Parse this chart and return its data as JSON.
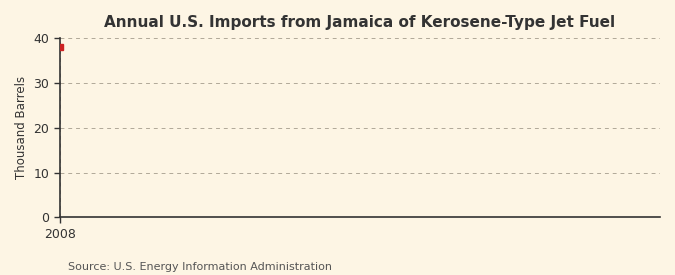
{
  "title": "Annual U.S. Imports from Jamaica of Kerosene-Type Jet Fuel",
  "ylabel": "Thousand Barrels",
  "source": "Source: U.S. Energy Information Administration",
  "x_data": [
    2008
  ],
  "y_data": [
    38
  ],
  "marker_color": "#cc2222",
  "marker_style": "s",
  "marker_size": 4,
  "xlim": [
    2008,
    2009.8
  ],
  "ylim": [
    0,
    40
  ],
  "yticks": [
    0,
    10,
    20,
    30,
    40
  ],
  "xticks": [
    2008
  ],
  "grid_color": "#b0a898",
  "bg_color": "#fdf5e4",
  "title_fontsize": 11,
  "label_fontsize": 8.5,
  "tick_fontsize": 9,
  "source_fontsize": 8
}
